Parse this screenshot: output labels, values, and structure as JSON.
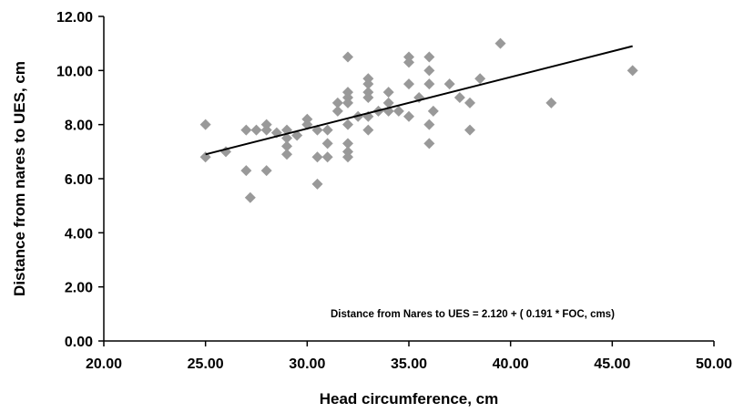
{
  "chart_data": {
    "type": "scatter",
    "xlabel": "Head circumference, cm",
    "ylabel": "Distance from nares to UES, cm",
    "xlim": [
      20,
      50
    ],
    "ylim": [
      0,
      12
    ],
    "x_ticks": [
      "20.00",
      "25.00",
      "30.00",
      "35.00",
      "40.00",
      "45.00",
      "50.00"
    ],
    "y_ticks": [
      "0.00",
      "2.00",
      "4.00",
      "6.00",
      "8.00",
      "10.00",
      "12.00"
    ],
    "x_tick_values": [
      20,
      25,
      30,
      35,
      40,
      45,
      50
    ],
    "y_tick_values": [
      0,
      2,
      4,
      6,
      8,
      10,
      12
    ],
    "grid": false,
    "marker_color": "#999999",
    "line_color": "#000000",
    "annotation": "Distance from Nares to UES = 2.120 + ( 0.191 * FOC, cms)",
    "trendline": {
      "x": [
        25,
        46
      ],
      "y": [
        6.9,
        10.9
      ]
    },
    "points": [
      {
        "x": 25.0,
        "y": 8.0
      },
      {
        "x": 25.0,
        "y": 6.8
      },
      {
        "x": 26.0,
        "y": 7.0
      },
      {
        "x": 27.0,
        "y": 7.8
      },
      {
        "x": 27.0,
        "y": 6.3
      },
      {
        "x": 27.2,
        "y": 5.3
      },
      {
        "x": 27.5,
        "y": 7.8
      },
      {
        "x": 28.0,
        "y": 8.0
      },
      {
        "x": 28.0,
        "y": 7.8
      },
      {
        "x": 28.0,
        "y": 6.3
      },
      {
        "x": 28.5,
        "y": 7.7
      },
      {
        "x": 29.0,
        "y": 7.8
      },
      {
        "x": 29.0,
        "y": 7.5
      },
      {
        "x": 29.0,
        "y": 7.2
      },
      {
        "x": 29.0,
        "y": 6.9
      },
      {
        "x": 29.5,
        "y": 7.6
      },
      {
        "x": 30.0,
        "y": 8.2
      },
      {
        "x": 30.0,
        "y": 8.0
      },
      {
        "x": 30.5,
        "y": 7.8
      },
      {
        "x": 30.5,
        "y": 6.8
      },
      {
        "x": 30.5,
        "y": 5.8
      },
      {
        "x": 31.0,
        "y": 7.8
      },
      {
        "x": 31.0,
        "y": 7.3
      },
      {
        "x": 31.0,
        "y": 6.8
      },
      {
        "x": 31.5,
        "y": 8.8
      },
      {
        "x": 31.5,
        "y": 8.5
      },
      {
        "x": 32.0,
        "y": 10.5
      },
      {
        "x": 32.0,
        "y": 9.2
      },
      {
        "x": 32.0,
        "y": 9.0
      },
      {
        "x": 32.0,
        "y": 8.8
      },
      {
        "x": 32.0,
        "y": 8.0
      },
      {
        "x": 32.0,
        "y": 7.3
      },
      {
        "x": 32.0,
        "y": 7.0
      },
      {
        "x": 32.0,
        "y": 6.8
      },
      {
        "x": 32.5,
        "y": 8.3
      },
      {
        "x": 33.0,
        "y": 9.7
      },
      {
        "x": 33.0,
        "y": 9.5
      },
      {
        "x": 33.0,
        "y": 9.2
      },
      {
        "x": 33.0,
        "y": 9.0
      },
      {
        "x": 33.0,
        "y": 8.3
      },
      {
        "x": 33.0,
        "y": 7.8
      },
      {
        "x": 33.5,
        "y": 8.5
      },
      {
        "x": 34.0,
        "y": 9.2
      },
      {
        "x": 34.0,
        "y": 8.8
      },
      {
        "x": 34.0,
        "y": 8.5
      },
      {
        "x": 34.5,
        "y": 8.5
      },
      {
        "x": 35.0,
        "y": 10.5
      },
      {
        "x": 35.0,
        "y": 10.3
      },
      {
        "x": 35.0,
        "y": 9.5
      },
      {
        "x": 35.0,
        "y": 8.3
      },
      {
        "x": 35.5,
        "y": 9.0
      },
      {
        "x": 36.0,
        "y": 10.5
      },
      {
        "x": 36.0,
        "y": 10.0
      },
      {
        "x": 36.0,
        "y": 9.5
      },
      {
        "x": 36.0,
        "y": 8.0
      },
      {
        "x": 36.0,
        "y": 7.3
      },
      {
        "x": 36.2,
        "y": 8.5
      },
      {
        "x": 37.0,
        "y": 9.5
      },
      {
        "x": 37.5,
        "y": 9.0
      },
      {
        "x": 38.0,
        "y": 8.8
      },
      {
        "x": 38.0,
        "y": 7.8
      },
      {
        "x": 38.5,
        "y": 9.7
      },
      {
        "x": 39.5,
        "y": 11.0
      },
      {
        "x": 42.0,
        "y": 8.8
      },
      {
        "x": 46.0,
        "y": 10.0
      }
    ]
  }
}
